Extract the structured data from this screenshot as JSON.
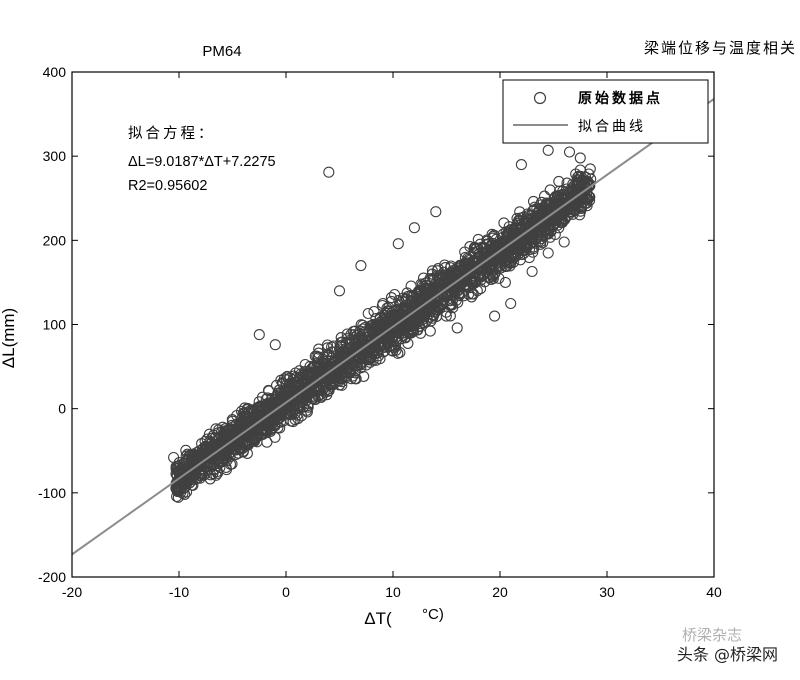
{
  "chart_data": {
    "type": "scatter",
    "title": "PM64",
    "corner_title": "梁端位移与温度相关",
    "xlabel": "ΔT(",
    "xlabel_unit": "°C)",
    "ylabel": "ΔL(mm)",
    "xlim": [
      -20,
      40
    ],
    "ylim": [
      -200,
      400
    ],
    "xticks": [
      -20,
      -10,
      0,
      10,
      20,
      30,
      40
    ],
    "yticks": [
      -200,
      -100,
      0,
      100,
      200,
      300,
      400
    ],
    "grid": false,
    "legend_position": "top-right",
    "series": [
      {
        "name": "原始数据点",
        "kind": "scatter",
        "marker": "open-circle",
        "color": "#404040",
        "cloud_envelope": {
          "x_start": -10.3,
          "x_end": 28.5,
          "fit_slope": 9.0187,
          "fit_intercept": 7.2275,
          "half_width_mm": 34
        },
        "outliers": [
          {
            "x": 4,
            "y": 281
          },
          {
            "x": 26.5,
            "y": 305
          },
          {
            "x": 27.5,
            "y": 298
          },
          {
            "x": 24.5,
            "y": 307
          },
          {
            "x": 28,
            "y": 275
          },
          {
            "x": 26,
            "y": 198
          },
          {
            "x": 23,
            "y": 163
          },
          {
            "x": 24.5,
            "y": 185
          },
          {
            "x": 14,
            "y": 234
          },
          {
            "x": 12,
            "y": 215
          },
          {
            "x": 19.5,
            "y": 110
          },
          {
            "x": 21,
            "y": 125
          },
          {
            "x": 20.5,
            "y": 150
          },
          {
            "x": 10.5,
            "y": 196
          },
          {
            "x": -10.5,
            "y": -58
          },
          {
            "x": -9.3,
            "y": -88
          },
          {
            "x": -8.7,
            "y": -91
          },
          {
            "x": -2.5,
            "y": 88
          },
          {
            "x": -1,
            "y": 76
          },
          {
            "x": 5,
            "y": 140
          },
          {
            "x": 7,
            "y": 170
          },
          {
            "x": 16,
            "y": 96
          },
          {
            "x": 25.5,
            "y": 270
          },
          {
            "x": 22,
            "y": 290
          }
        ]
      },
      {
        "name": "拟合曲线",
        "kind": "line",
        "color": "#8c8c8c",
        "slope": 9.0187,
        "intercept": 7.2275,
        "x_range": [
          -20,
          40
        ]
      }
    ],
    "annotations": {
      "heading": "拟合方程：",
      "equation": "ΔL=9.0187*ΔT+7.2275",
      "r2": "R2=0.95602"
    },
    "watermark": {
      "text": "头条 @桥梁网",
      "faint_text": "桥梁杂志"
    }
  }
}
